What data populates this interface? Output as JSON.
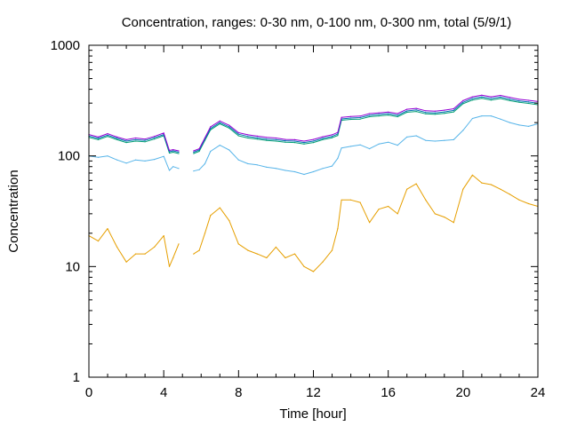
{
  "chart_data": {
    "type": "line",
    "title": "Concentration, ranges: 0-30 nm, 0-100 nm, 0-300 nm, total (5/9/1)",
    "xlabel": "Time [hour]",
    "ylabel": "Concentration",
    "xlim": [
      0,
      24
    ],
    "ylim": [
      1,
      1000
    ],
    "yscale": "log",
    "grid": false,
    "legend": "none",
    "x_ticks": [
      0,
      4,
      8,
      12,
      16,
      20,
      24
    ],
    "x_tick_labels": [
      "0",
      "4",
      "8",
      "12",
      "16",
      "20",
      "24"
    ],
    "y_ticks": [
      1,
      10,
      100,
      1000
    ],
    "y_tick_labels": [
      "1",
      "10",
      "100",
      "1000"
    ],
    "series": [
      {
        "color": "#e69f00",
        "x": [
          0,
          0.5,
          1,
          1.5,
          2,
          2.5,
          3,
          3.5,
          4,
          4.3,
          4.5,
          4.8,
          5.6,
          5.9,
          6.2,
          6.5,
          7,
          7.5,
          8,
          8.5,
          9,
          9.5,
          10,
          10.5,
          11,
          11.5,
          12,
          12.5,
          13,
          13.3,
          13.5,
          14,
          14.5,
          15,
          15.5,
          16,
          16.5,
          17,
          17.5,
          18,
          18.5,
          19,
          19.5,
          20,
          20.5,
          21,
          21.5,
          22,
          22.5,
          23,
          23.5,
          24
        ],
        "y": [
          19,
          17,
          22,
          15,
          11,
          13,
          13,
          15,
          19,
          10,
          12,
          16,
          13,
          14,
          20,
          29,
          34,
          26,
          16,
          14,
          13,
          12,
          15,
          12,
          13,
          10,
          9,
          11,
          14,
          22,
          40,
          40,
          38,
          25,
          33,
          35,
          30,
          50,
          56,
          40,
          30,
          28,
          25,
          50,
          67,
          57,
          55,
          50,
          45,
          40,
          37,
          35
        ]
      },
      {
        "color": "#56b4e9",
        "x": [
          0,
          0.5,
          1,
          1.5,
          2,
          2.5,
          3,
          3.5,
          4,
          4.3,
          4.5,
          4.8,
          5.6,
          5.9,
          6.2,
          6.5,
          7,
          7.5,
          8,
          8.5,
          9,
          9.5,
          10,
          10.5,
          11,
          11.5,
          12,
          12.5,
          13,
          13.3,
          13.5,
          14,
          14.5,
          15,
          15.5,
          16,
          16.5,
          17,
          17.5,
          18,
          18.5,
          19,
          19.5,
          20,
          20.5,
          21,
          21.5,
          22,
          22.5,
          23,
          23.5,
          24
        ],
        "y": [
          100,
          97,
          100,
          92,
          86,
          92,
          90,
          93,
          99,
          74,
          80,
          77,
          73,
          75,
          85,
          110,
          125,
          113,
          92,
          85,
          83,
          79,
          77,
          74,
          72,
          68,
          72,
          77,
          81,
          95,
          118,
          122,
          126,
          116,
          128,
          133,
          125,
          148,
          152,
          138,
          136,
          138,
          140,
          170,
          218,
          230,
          230,
          215,
          200,
          190,
          185,
          195
        ]
      },
      {
        "color": "#009e73",
        "x": [
          0,
          0.5,
          1,
          1.5,
          2,
          2.5,
          3,
          3.5,
          4,
          4.3,
          4.5,
          4.8,
          5.6,
          5.9,
          6.2,
          6.5,
          7,
          7.5,
          8,
          8.5,
          9,
          9.5,
          10,
          10.5,
          11,
          11.5,
          12,
          12.5,
          13,
          13.3,
          13.5,
          14,
          14.5,
          15,
          15.5,
          16,
          16.5,
          17,
          17.5,
          18,
          18.5,
          19,
          19.5,
          20,
          20.5,
          21,
          21.5,
          22,
          22.5,
          23,
          23.5,
          24
        ],
        "y": [
          147,
          140,
          150,
          140,
          132,
          136,
          134,
          142,
          152,
          106,
          108,
          105,
          105,
          110,
          138,
          172,
          195,
          178,
          152,
          145,
          142,
          138,
          136,
          133,
          132,
          128,
          132,
          140,
          146,
          153,
          210,
          214,
          215,
          226,
          230,
          234,
          226,
          248,
          252,
          240,
          238,
          242,
          250,
          296,
          320,
          332,
          320,
          330,
          316,
          305,
          298,
          290
        ]
      },
      {
        "color": "#0072b2",
        "x": [
          0,
          0.5,
          1,
          1.5,
          2,
          2.5,
          3,
          3.5,
          4,
          4.3,
          4.5,
          4.8,
          5.6,
          5.9,
          6.2,
          6.5,
          7,
          7.5,
          8,
          8.5,
          9,
          9.5,
          10,
          10.5,
          11,
          11.5,
          12,
          12.5,
          13,
          13.3,
          13.5,
          14,
          14.5,
          15,
          15.5,
          16,
          16.5,
          17,
          17.5,
          18,
          18.5,
          19,
          19.5,
          20,
          20.5,
          21,
          21.5,
          22,
          22.5,
          23,
          23.5,
          24
        ],
        "y": [
          151,
          144,
          154,
          144,
          136,
          140,
          138,
          146,
          156,
          109,
          111,
          108,
          108,
          113,
          142,
          177,
          200,
          183,
          157,
          150,
          146,
          142,
          140,
          137,
          136,
          132,
          136,
          144,
          150,
          158,
          216,
          220,
          222,
          233,
          237,
          241,
          233,
          255,
          260,
          247,
          245,
          250,
          258,
          305,
          330,
          342,
          330,
          340,
          326,
          314,
          307,
          299
        ]
      },
      {
        "color": "#9400d3",
        "x": [
          0,
          0.5,
          1,
          1.5,
          2,
          2.5,
          3,
          3.5,
          4,
          4.3,
          4.5,
          4.8,
          5.6,
          5.9,
          6.2,
          6.5,
          7,
          7.5,
          8,
          8.5,
          9,
          9.5,
          10,
          10.5,
          11,
          11.5,
          12,
          12.5,
          13,
          13.3,
          13.5,
          14,
          14.5,
          15,
          15.5,
          16,
          16.5,
          17,
          17.5,
          18,
          18.5,
          19,
          19.5,
          20,
          20.5,
          21,
          21.5,
          22,
          22.5,
          23,
          23.5,
          24
        ],
        "y": [
          156,
          148,
          159,
          148,
          140,
          145,
          142,
          150,
          161,
          112,
          114,
          111,
          111,
          116,
          146,
          183,
          207,
          189,
          162,
          155,
          151,
          147,
          145,
          141,
          140,
          136,
          141,
          149,
          155,
          163,
          223,
          227,
          229,
          241,
          245,
          249,
          241,
          264,
          269,
          256,
          254,
          259,
          267,
          316,
          342,
          354,
          342,
          352,
          338,
          325,
          318,
          310
        ]
      }
    ]
  }
}
